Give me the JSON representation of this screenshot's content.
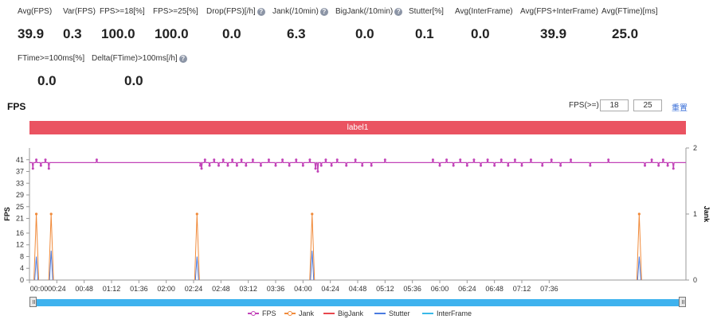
{
  "metrics": [
    {
      "label": "Avg(FPS)",
      "value": "39.9",
      "help": false
    },
    {
      "label": "Var(FPS)",
      "value": "0.3",
      "help": false
    },
    {
      "label": "FPS>=18[%]",
      "value": "100.0",
      "help": false
    },
    {
      "label": "FPS>=25[%]",
      "value": "100.0",
      "help": false
    },
    {
      "label": "Drop(FPS)[/h]",
      "value": "0.0",
      "help": true
    },
    {
      "label": "Jank(/10min)",
      "value": "6.3",
      "help": true
    },
    {
      "label": "BigJank(/10min)",
      "value": "0.0",
      "help": true
    },
    {
      "label": "Stutter[%]",
      "value": "0.1",
      "help": false
    },
    {
      "label": "Avg(InterFrame)",
      "value": "0.0",
      "help": false
    },
    {
      "label": "Avg(FPS+InterFrame)",
      "value": "39.9",
      "help": false
    },
    {
      "label": "Avg(FTime)[ms]",
      "value": "25.0",
      "help": false
    },
    {
      "label": "FTime>=100ms[%]",
      "value": "0.0",
      "help": false
    },
    {
      "label": "Delta(FTime)>100ms[/h]",
      "value": "0.0",
      "help": true
    }
  ],
  "help_glyph": "?",
  "chart_title": "FPS",
  "fps_threshold": {
    "label": "FPS(>=)",
    "low": "18",
    "high": "25",
    "reset": "重置"
  },
  "label_bar": "label1",
  "colors": {
    "fps": "#c243b8",
    "jank": "#f08a3a",
    "bigjank": "#e8474d",
    "stutter": "#4a7be0",
    "interframe": "#39b9e8",
    "label_bar": "#ea5361",
    "slider": "#3eb2ee"
  },
  "chart_data": {
    "type": "line",
    "ylabel": "FPS",
    "y2label": "Jank",
    "yticks": [
      0,
      4,
      8,
      12,
      16,
      21,
      25,
      29,
      33,
      37,
      41
    ],
    "ylim": [
      0,
      45
    ],
    "y2ticks": [
      0,
      1,
      2
    ],
    "y2lim": [
      0,
      2
    ],
    "xticks": [
      "00:00",
      "00:24",
      "00:48",
      "01:12",
      "01:36",
      "02:00",
      "02:24",
      "02:48",
      "03:12",
      "03:36",
      "04:00",
      "04:24",
      "04:48",
      "05:12",
      "05:36",
      "06:00",
      "06:24",
      "06:48",
      "07:12",
      "07:36"
    ],
    "xlim_seconds": [
      0,
      576
    ],
    "fps_baseline": 40,
    "fps_dips": [
      {
        "t": 3,
        "v": 38
      },
      {
        "t": 6,
        "v": 41
      },
      {
        "t": 10,
        "v": 39
      },
      {
        "t": 14,
        "v": 41
      },
      {
        "t": 17,
        "v": 38
      },
      {
        "t": 59,
        "v": 41
      },
      {
        "t": 150,
        "v": 39
      },
      {
        "t": 151,
        "v": 38
      },
      {
        "t": 154,
        "v": 41
      },
      {
        "t": 158,
        "v": 39
      },
      {
        "t": 162,
        "v": 41
      },
      {
        "t": 166,
        "v": 39
      },
      {
        "t": 170,
        "v": 41
      },
      {
        "t": 174,
        "v": 39
      },
      {
        "t": 178,
        "v": 41
      },
      {
        "t": 182,
        "v": 39
      },
      {
        "t": 186,
        "v": 41
      },
      {
        "t": 190,
        "v": 39
      },
      {
        "t": 196,
        "v": 41
      },
      {
        "t": 203,
        "v": 39
      },
      {
        "t": 210,
        "v": 41
      },
      {
        "t": 216,
        "v": 39
      },
      {
        "t": 222,
        "v": 41
      },
      {
        "t": 228,
        "v": 39
      },
      {
        "t": 234,
        "v": 41
      },
      {
        "t": 240,
        "v": 39
      },
      {
        "t": 246,
        "v": 41
      },
      {
        "t": 251,
        "v": 38
      },
      {
        "t": 253,
        "v": 37
      },
      {
        "t": 256,
        "v": 39
      },
      {
        "t": 260,
        "v": 41
      },
      {
        "t": 265,
        "v": 39
      },
      {
        "t": 270,
        "v": 41
      },
      {
        "t": 278,
        "v": 39
      },
      {
        "t": 286,
        "v": 41
      },
      {
        "t": 292,
        "v": 39
      },
      {
        "t": 300,
        "v": 39
      },
      {
        "t": 312,
        "v": 41
      },
      {
        "t": 354,
        "v": 41
      },
      {
        "t": 360,
        "v": 39
      },
      {
        "t": 366,
        "v": 41
      },
      {
        "t": 372,
        "v": 39
      },
      {
        "t": 378,
        "v": 41
      },
      {
        "t": 384,
        "v": 39
      },
      {
        "t": 390,
        "v": 41
      },
      {
        "t": 396,
        "v": 39
      },
      {
        "t": 402,
        "v": 41
      },
      {
        "t": 408,
        "v": 39
      },
      {
        "t": 414,
        "v": 41
      },
      {
        "t": 420,
        "v": 39
      },
      {
        "t": 426,
        "v": 41
      },
      {
        "t": 432,
        "v": 39
      },
      {
        "t": 440,
        "v": 41
      },
      {
        "t": 450,
        "v": 39
      },
      {
        "t": 458,
        "v": 41
      },
      {
        "t": 466,
        "v": 39
      },
      {
        "t": 475,
        "v": 41
      },
      {
        "t": 492,
        "v": 39
      },
      {
        "t": 508,
        "v": 41
      },
      {
        "t": 540,
        "v": 39
      },
      {
        "t": 546,
        "v": 41
      },
      {
        "t": 552,
        "v": 39
      },
      {
        "t": 556,
        "v": 41
      },
      {
        "t": 560,
        "v": 39
      },
      {
        "t": 565,
        "v": 38
      }
    ],
    "jank_events": [
      {
        "t": 6,
        "jank": 1,
        "stutter_fps": 8
      },
      {
        "t": 19,
        "jank": 1,
        "stutter_fps": 10
      },
      {
        "t": 147,
        "jank": 1,
        "stutter_fps": 8
      },
      {
        "t": 248,
        "jank": 1,
        "stutter_fps": 10
      },
      {
        "t": 535,
        "jank": 1,
        "stutter_fps": 8
      }
    ],
    "legend_position": "bottom-center"
  },
  "legend": [
    {
      "key": "fps",
      "label": "FPS",
      "marker": true
    },
    {
      "key": "jank",
      "label": "Jank",
      "marker": true
    },
    {
      "key": "bigjank",
      "label": "BigJank",
      "marker": false
    },
    {
      "key": "stutter",
      "label": "Stutter",
      "marker": false
    },
    {
      "key": "interframe",
      "label": "InterFrame",
      "marker": false
    }
  ]
}
